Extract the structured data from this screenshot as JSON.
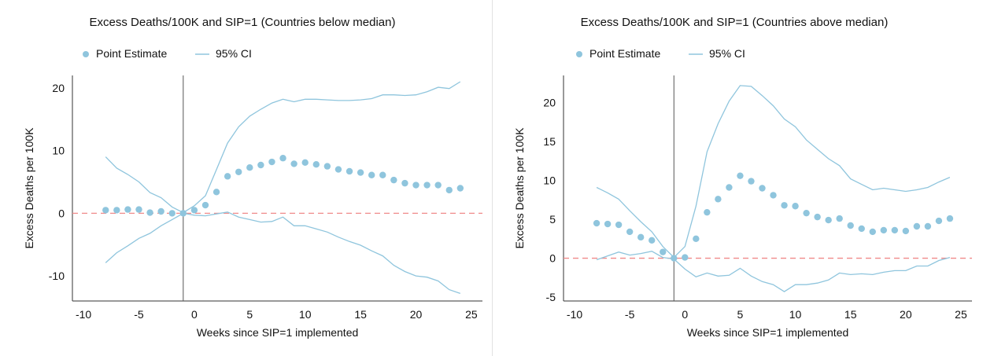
{
  "chart_data": [
    {
      "type": "scatter",
      "title": "Excess Deaths/100K and SIP=1 (Countries below median)",
      "xlabel": "Weeks since SIP=1 implemented",
      "ylabel": "Excess Deaths per 100K",
      "xlim": [
        -11,
        26
      ],
      "ylim": [
        -14,
        22
      ],
      "xticks": [
        -10,
        -5,
        0,
        5,
        10,
        15,
        20,
        25
      ],
      "yticks": [
        -10,
        0,
        10,
        20
      ],
      "event_x": -1,
      "reference_y": 0,
      "legend": {
        "position": "top-left",
        "entries": [
          "Point Estimate",
          "95% CI"
        ]
      },
      "colors": {
        "point": "#8fc5dd",
        "ci": "#8fc5dd",
        "reference": "#f08a8a",
        "event": "#555555",
        "axis": "#333333"
      },
      "series": [
        {
          "name": "Point Estimate",
          "kind": "points",
          "x": [
            -8,
            -7,
            -6,
            -5,
            -4,
            -3,
            -2,
            -1,
            0,
            1,
            2,
            3,
            4,
            5,
            6,
            7,
            8,
            9,
            10,
            11,
            12,
            13,
            14,
            15,
            16,
            17,
            18,
            19,
            20,
            21,
            22,
            23,
            24
          ],
          "y": [
            0.5,
            0.5,
            0.6,
            0.6,
            0.1,
            0.3,
            0.0,
            0.0,
            0.5,
            1.3,
            3.4,
            5.9,
            6.6,
            7.3,
            7.7,
            8.2,
            8.8,
            7.9,
            8.1,
            7.8,
            7.5,
            7.0,
            6.7,
            6.5,
            6.1,
            6.1,
            5.3,
            4.8,
            4.5,
            4.5,
            4.5,
            3.7,
            4.0
          ]
        },
        {
          "name": "95% CI",
          "kind": "upper",
          "x": [
            -8,
            -7,
            -6,
            -5,
            -4,
            -3,
            -2,
            -1,
            0,
            1,
            2,
            3,
            4,
            5,
            6,
            7,
            8,
            9,
            10,
            11,
            12,
            13,
            14,
            15,
            16,
            17,
            18,
            19,
            20,
            21,
            22,
            23,
            24
          ],
          "y": [
            9.0,
            7.2,
            6.2,
            5.0,
            3.3,
            2.5,
            1.0,
            0.1,
            1.2,
            2.8,
            7.0,
            11.2,
            13.8,
            15.5,
            16.6,
            17.6,
            18.2,
            17.8,
            18.2,
            18.2,
            18.1,
            18.0,
            18.0,
            18.1,
            18.3,
            18.9,
            18.9,
            18.8,
            18.9,
            19.4,
            20.1,
            19.9,
            21.0
          ]
        },
        {
          "name": "95% CI",
          "kind": "lower",
          "x": [
            -8,
            -7,
            -6,
            -5,
            -4,
            -3,
            -2,
            -1,
            0,
            1,
            2,
            3,
            4,
            5,
            6,
            7,
            8,
            9,
            10,
            11,
            12,
            13,
            14,
            15,
            16,
            17,
            18,
            19,
            20,
            21,
            22,
            23,
            24
          ],
          "y": [
            -7.9,
            -6.3,
            -5.2,
            -4.0,
            -3.2,
            -2.0,
            -1.0,
            0.0,
            -0.3,
            -0.4,
            -0.1,
            0.2,
            -0.6,
            -1.0,
            -1.4,
            -1.3,
            -0.6,
            -2.0,
            -2.0,
            -2.5,
            -3.0,
            -3.8,
            -4.5,
            -5.1,
            -6.0,
            -6.8,
            -8.3,
            -9.3,
            -10.0,
            -10.2,
            -10.8,
            -12.2,
            -12.8
          ]
        }
      ]
    },
    {
      "type": "scatter",
      "title": "Excess Deaths/100K and SIP=1 (Countries above median)",
      "xlabel": "Weeks since SIP=1 implemented",
      "ylabel": "Excess Deaths per 100K",
      "xlim": [
        -11,
        26
      ],
      "ylim": [
        -5.5,
        23.5
      ],
      "xticks": [
        -10,
        -5,
        0,
        5,
        10,
        15,
        20,
        25
      ],
      "yticks": [
        -5,
        0,
        5,
        10,
        15,
        20
      ],
      "event_x": -1,
      "reference_y": 0,
      "legend": {
        "position": "top-left",
        "entries": [
          "Point Estimate",
          "95% CI"
        ]
      },
      "colors": {
        "point": "#8fc5dd",
        "ci": "#8fc5dd",
        "reference": "#f08a8a",
        "event": "#555555",
        "axis": "#333333"
      },
      "series": [
        {
          "name": "Point Estimate",
          "kind": "points",
          "x": [
            -8,
            -7,
            -6,
            -5,
            -4,
            -3,
            -2,
            -1,
            0,
            1,
            2,
            3,
            4,
            5,
            6,
            7,
            8,
            9,
            10,
            11,
            12,
            13,
            14,
            15,
            16,
            17,
            18,
            19,
            20,
            21,
            22,
            23,
            24
          ],
          "y": [
            4.5,
            4.4,
            4.3,
            3.4,
            2.7,
            2.3,
            0.8,
            0.0,
            0.1,
            2.5,
            5.9,
            7.6,
            9.1,
            10.6,
            9.9,
            9.0,
            8.1,
            6.8,
            6.7,
            5.8,
            5.3,
            4.9,
            5.1,
            4.2,
            3.8,
            3.4,
            3.6,
            3.6,
            3.5,
            4.1,
            4.1,
            4.8,
            5.1
          ]
        },
        {
          "name": "95% CI",
          "kind": "upper",
          "x": [
            -8,
            -7,
            -6,
            -5,
            -4,
            -3,
            -2,
            -1,
            0,
            1,
            2,
            3,
            4,
            5,
            6,
            7,
            8,
            9,
            10,
            11,
            12,
            13,
            14,
            15,
            16,
            17,
            18,
            19,
            20,
            21,
            22,
            23,
            24
          ],
          "y": [
            9.1,
            8.4,
            7.6,
            6.1,
            4.7,
            3.4,
            1.5,
            0.1,
            1.5,
            6.7,
            13.7,
            17.3,
            20.2,
            22.2,
            22.1,
            20.9,
            19.6,
            17.9,
            16.9,
            15.2,
            14.0,
            12.8,
            11.9,
            10.2,
            9.5,
            8.8,
            9.0,
            8.8,
            8.6,
            8.8,
            9.1,
            9.8,
            10.4
          ]
        },
        {
          "name": "95% CI",
          "kind": "lower",
          "x": [
            -8,
            -7,
            -6,
            -5,
            -4,
            -3,
            -2,
            -1,
            0,
            1,
            2,
            3,
            4,
            5,
            6,
            7,
            8,
            9,
            10,
            11,
            12,
            13,
            14,
            15,
            16,
            17,
            18,
            19,
            20,
            21,
            22,
            23,
            24
          ],
          "y": [
            -0.2,
            0.3,
            0.8,
            0.4,
            0.6,
            0.9,
            0.1,
            -0.1,
            -1.4,
            -2.4,
            -1.9,
            -2.3,
            -2.2,
            -1.3,
            -2.3,
            -3.0,
            -3.4,
            -4.3,
            -3.4,
            -3.4,
            -3.2,
            -2.8,
            -1.9,
            -2.1,
            -2.0,
            -2.1,
            -1.8,
            -1.6,
            -1.6,
            -1.0,
            -1.0,
            -0.3,
            0.1
          ]
        }
      ]
    }
  ]
}
